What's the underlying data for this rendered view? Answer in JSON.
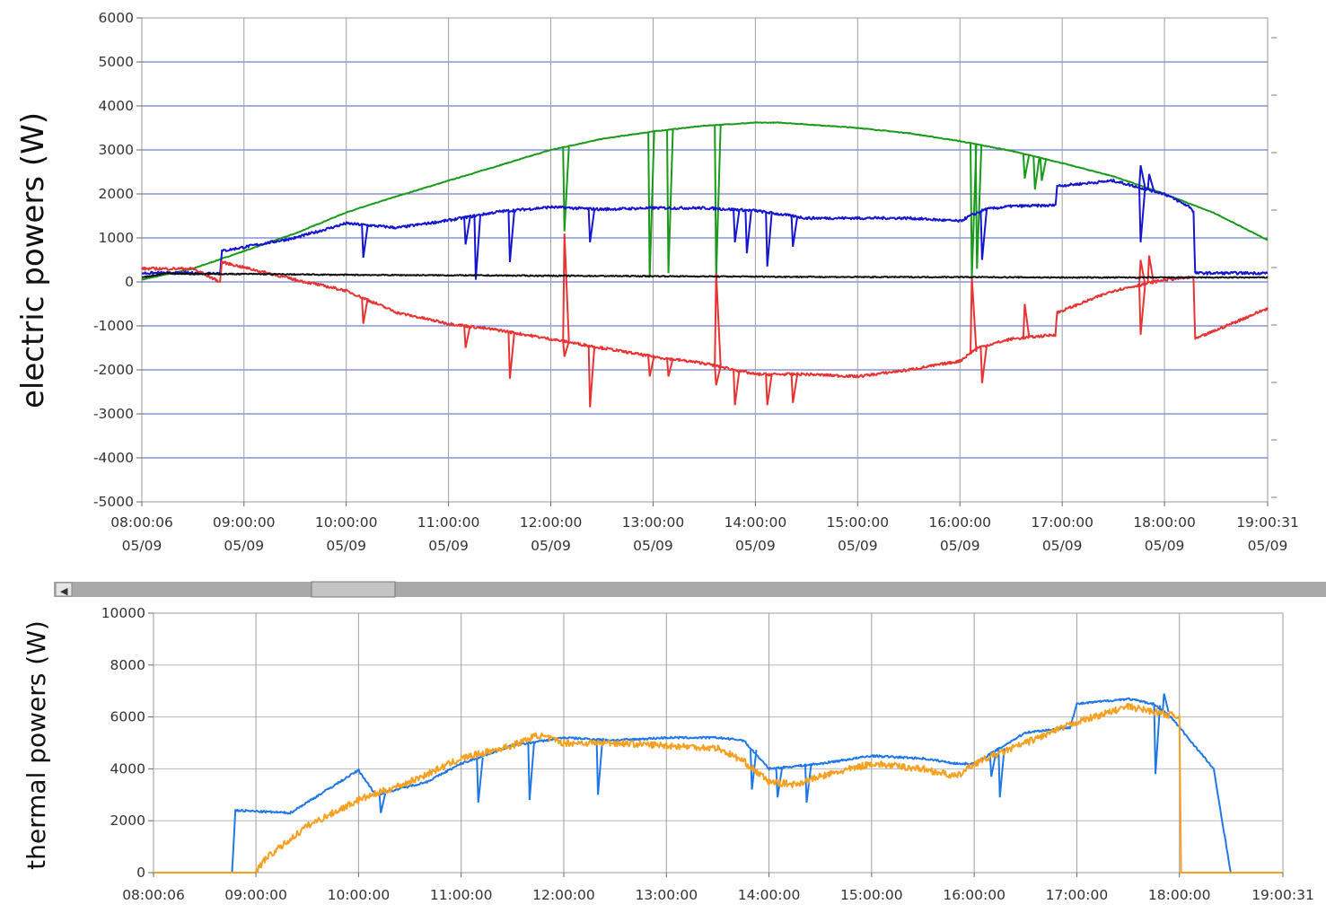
{
  "chart_data": [
    {
      "type": "line",
      "ylabel": "electric powers (W)",
      "ylim": [
        -5000,
        6000
      ],
      "xlim": [
        "08:00:06",
        "19:00:31"
      ],
      "grid": true,
      "yticks": [
        "6000",
        "5000",
        "4000",
        "3000",
        "2000",
        "1000",
        "0",
        "-1000",
        "-2000",
        "-3000",
        "-4000",
        "-5000"
      ],
      "xticks": [
        {
          "t": "08:00:06",
          "d": "05/09"
        },
        {
          "t": "09:00:00",
          "d": "05/09"
        },
        {
          "t": "10:00:00",
          "d": "05/09"
        },
        {
          "t": "11:00:00",
          "d": "05/09"
        },
        {
          "t": "12:00:00",
          "d": "05/09"
        },
        {
          "t": "13:00:00",
          "d": "05/09"
        },
        {
          "t": "14:00:00",
          "d": "05/09"
        },
        {
          "t": "15:00:00",
          "d": "05/09"
        },
        {
          "t": "16:00:00",
          "d": "05/09"
        },
        {
          "t": "17:00:00",
          "d": "05/09"
        },
        {
          "t": "18:00:00",
          "d": "05/09"
        },
        {
          "t": "19:00:31",
          "d": "05/09"
        }
      ],
      "series": [
        {
          "color": "#1a9a1a",
          "x": [
            "08:00:06",
            "08:30",
            "09:00",
            "09:30",
            "10:00",
            "10:30",
            "11:00",
            "11:30",
            "12:00",
            "12:30",
            "13:00",
            "13:30",
            "14:00",
            "14:15",
            "14:30",
            "15:00",
            "15:30",
            "16:00",
            "16:30",
            "17:00",
            "17:30",
            "18:00",
            "18:30",
            "19:00:31"
          ],
          "y": [
            50,
            300,
            700,
            1100,
            1580,
            1950,
            2300,
            2650,
            3000,
            3250,
            3420,
            3550,
            3620,
            3620,
            3580,
            3500,
            3380,
            3200,
            2980,
            2700,
            2400,
            2000,
            1550,
            950
          ],
          "spikes": [
            [
              "12:08",
              1150
            ],
            [
              "12:58",
              100
            ],
            [
              "13:09",
              200
            ],
            [
              "13:37",
              100
            ],
            [
              "16:07",
              100
            ],
            [
              "16:10",
              300
            ],
            [
              "16:38",
              2350
            ],
            [
              "16:44",
              2100
            ],
            [
              "16:48",
              2300
            ]
          ]
        },
        {
          "color": "#1515d0",
          "x": [
            "08:00:06",
            "08:30",
            "08:46",
            "08:47",
            "09:30",
            "10:00",
            "10:30",
            "11:00",
            "11:30",
            "12:00",
            "12:30",
            "13:00",
            "13:30",
            "14:00",
            "14:30",
            "15:00",
            "15:30",
            "16:00",
            "16:06",
            "16:15",
            "16:30",
            "16:56",
            "16:57",
            "17:30",
            "18:00",
            "18:15",
            "18:17",
            "18:18",
            "19:00:31"
          ],
          "y": [
            200,
            200,
            200,
            700,
            1000,
            1330,
            1230,
            1400,
            1600,
            1700,
            1650,
            1680,
            1680,
            1620,
            1450,
            1450,
            1450,
            1380,
            1500,
            1650,
            1720,
            1740,
            2180,
            2300,
            2000,
            1700,
            1600,
            200,
            200
          ],
          "spikes": [
            [
              "10:10",
              550
            ],
            [
              "11:10",
              850
            ],
            [
              "11:16",
              50
            ],
            [
              "11:36",
              450
            ],
            [
              "12:23",
              900
            ],
            [
              "13:48",
              900
            ],
            [
              "13:55",
              650
            ],
            [
              "14:07",
              350
            ],
            [
              "14:22",
              800
            ],
            [
              "16:13",
              500
            ],
            [
              "17:46",
              900
            ],
            [
              "17:51",
              2450
            ],
            [
              "17:46",
              2650
            ]
          ]
        },
        {
          "color": "#e83333",
          "x": [
            "08:00:06",
            "08:30",
            "08:46",
            "08:47",
            "09:30",
            "10:00",
            "10:30",
            "11:00",
            "11:30",
            "12:00",
            "12:30",
            "13:00",
            "13:30",
            "14:00",
            "14:30",
            "15:00",
            "15:30",
            "16:00",
            "16:10",
            "16:30",
            "16:56",
            "16:57",
            "17:30",
            "18:00",
            "18:15",
            "18:17",
            "18:18",
            "19:00:31"
          ],
          "y": [
            300,
            300,
            0,
            450,
            50,
            -200,
            -700,
            -950,
            -1100,
            -1300,
            -1500,
            -1700,
            -1850,
            -2100,
            -2100,
            -2150,
            -2000,
            -1800,
            -1500,
            -1300,
            -1200,
            -700,
            -200,
            50,
            100,
            100,
            -1300,
            -600
          ],
          "spikes": [
            [
              "10:10",
              -950
            ],
            [
              "11:10",
              -1500
            ],
            [
              "11:36",
              -2200
            ],
            [
              "12:08",
              1100
            ],
            [
              "12:08",
              -1700
            ],
            [
              "12:23",
              -2850
            ],
            [
              "12:58",
              -2150
            ],
            [
              "13:09",
              -2150
            ],
            [
              "13:37",
              200
            ],
            [
              "13:37",
              -2350
            ],
            [
              "13:48",
              -2800
            ],
            [
              "14:07",
              -2800
            ],
            [
              "14:22",
              -2750
            ],
            [
              "16:07",
              100
            ],
            [
              "16:13",
              -2300
            ],
            [
              "16:38",
              -500
            ],
            [
              "17:46",
              500
            ],
            [
              "17:46",
              -1200
            ],
            [
              "17:51",
              600
            ]
          ]
        },
        {
          "color": "#111111",
          "x": [
            "08:00:06",
            "08:15",
            "08:30",
            "09:00",
            "10:00",
            "11:00",
            "12:00",
            "13:00",
            "14:00",
            "15:00",
            "16:00",
            "17:00",
            "18:00",
            "19:00:31"
          ],
          "y": [
            100,
            200,
            180,
            180,
            160,
            150,
            140,
            130,
            120,
            110,
            110,
            100,
            100,
            100
          ],
          "spikes": []
        }
      ]
    },
    {
      "type": "line",
      "ylabel": "thermal powers (W)",
      "ylim": [
        0,
        10000
      ],
      "xlim": [
        "08:00:06",
        "19:00:31"
      ],
      "grid": true,
      "yticks": [
        "10000",
        "8000",
        "6000",
        "4000",
        "2000",
        "0"
      ],
      "xticks": [
        "08:00:06",
        "09:00:00",
        "10:00:00",
        "11:00:00",
        "12:00:00",
        "13:00:00",
        "14:00:00",
        "15:00:00",
        "16:00:00",
        "17:00:00",
        "18:00:00",
        "19:00:31"
      ],
      "series": [
        {
          "color": "#1f78e6",
          "x": [
            "08:00:06",
            "08:46",
            "08:48",
            "09:20",
            "10:00",
            "10:10",
            "10:40",
            "11:00",
            "11:30",
            "12:00",
            "12:30",
            "13:00",
            "13:30",
            "13:45",
            "14:00",
            "14:30",
            "15:00",
            "15:30",
            "15:50",
            "16:00",
            "16:30",
            "16:56",
            "17:00",
            "17:30",
            "17:45",
            "17:55",
            "18:20",
            "18:30",
            "19:00:31"
          ],
          "y": [
            0,
            0,
            2400,
            2300,
            3950,
            3000,
            3500,
            4200,
            4900,
            5200,
            5100,
            5200,
            5200,
            5100,
            4000,
            4200,
            4500,
            4400,
            4200,
            4200,
            5400,
            5600,
            6500,
            6700,
            6500,
            6000,
            4000,
            0,
            0
          ],
          "spikes": [
            [
              "10:13",
              2300
            ],
            [
              "11:10",
              2700
            ],
            [
              "11:40",
              2800
            ],
            [
              "12:20",
              3000
            ],
            [
              "13:50",
              3200
            ],
            [
              "14:05",
              2900
            ],
            [
              "14:22",
              2700
            ],
            [
              "16:10",
              3700
            ],
            [
              "16:15",
              2900
            ],
            [
              "17:46",
              3800
            ],
            [
              "17:51",
              6900
            ]
          ]
        },
        {
          "color": "#f5a020",
          "x": [
            "08:00:06",
            "09:00",
            "09:05",
            "09:30",
            "10:00",
            "10:30",
            "11:00",
            "11:30",
            "11:45",
            "12:00",
            "12:30",
            "13:00",
            "13:30",
            "13:45",
            "14:00",
            "14:15",
            "14:30",
            "15:00",
            "15:30",
            "15:50",
            "16:00",
            "16:30",
            "17:00",
            "17:30",
            "17:45",
            "18:00",
            "18:01",
            "19:00:31"
          ],
          "y": [
            0,
            0,
            500,
            1800,
            2800,
            3500,
            4400,
            4900,
            5300,
            5000,
            5000,
            4900,
            4800,
            4300,
            3500,
            3400,
            3700,
            4200,
            4000,
            3700,
            4200,
            5000,
            5800,
            6400,
            6200,
            6000,
            0,
            0
          ],
          "spikes": []
        }
      ]
    }
  ]
}
